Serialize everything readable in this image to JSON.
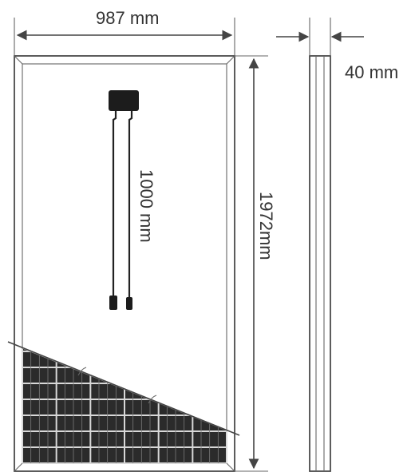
{
  "dimensions": {
    "width": "987 mm",
    "height": "1972mm",
    "depth": "40 mm",
    "cable_length": "1000 mm"
  },
  "colors": {
    "line": "#444444",
    "cell": "#2b2b2b",
    "junction_box": "#1c1c1c"
  }
}
